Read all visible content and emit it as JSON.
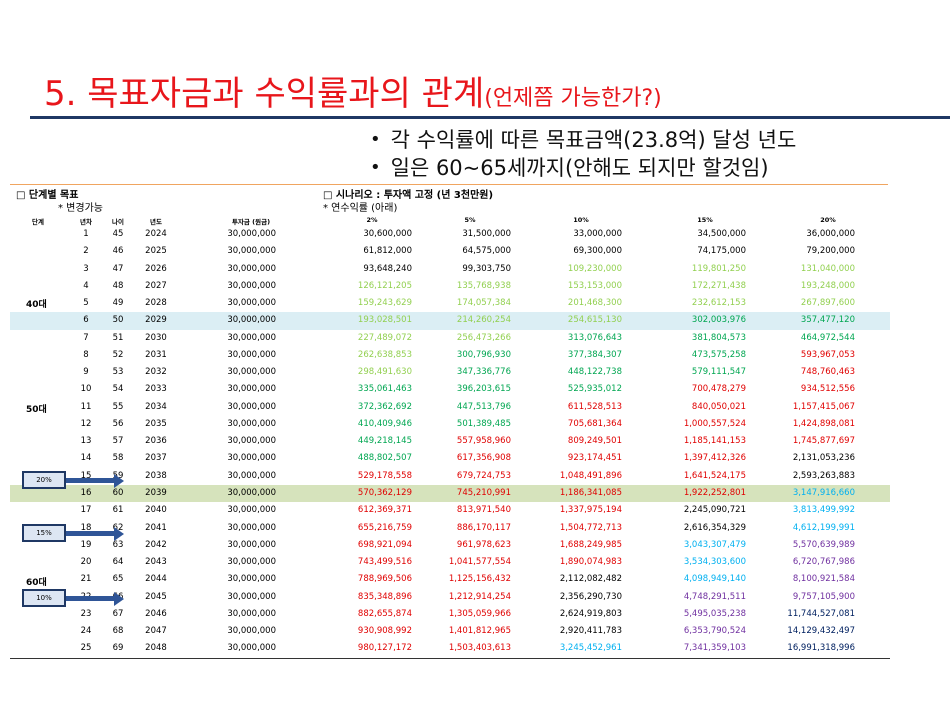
{
  "slide": {
    "title_main": "5. 목표자금과 수익률과의 관계",
    "title_sub": "(언제쯤 가능한가?)",
    "bullets": [
      "각 수익률에 따른 목표금액(23.8억) 달성 년도",
      "일은 60~65세까지(안해도 되지만 할것임)"
    ]
  },
  "table": {
    "left_header": "□ 단계별 목표",
    "left_note": "* 변경가능",
    "right_header": "□ 시나리오 : 투자액 고정 (년 3천만원)",
    "right_note": "* 연수익률 (아래)",
    "columns": {
      "stage": "단계",
      "year_no": "년차",
      "age": "나이",
      "year": "년도",
      "investment": "투자금 (원금)",
      "rates": [
        "2%",
        "5%",
        "10%",
        "15%",
        "20%"
      ]
    },
    "stage_labels": {
      "40s": "40대",
      "50s": "50대",
      "60s": "60대"
    },
    "callouts": [
      "20%",
      "15%",
      "10%"
    ],
    "rows": [
      {
        "n": "1",
        "age": "45",
        "year": "2024",
        "inv": "30,000,000",
        "v": [
          "30,600,000",
          "31,500,000",
          "33,000,000",
          "34,500,000",
          "36,000,000"
        ],
        "c": [
          "black",
          "black",
          "black",
          "black",
          "black"
        ]
      },
      {
        "n": "2",
        "age": "46",
        "year": "2025",
        "inv": "30,000,000",
        "v": [
          "61,812,000",
          "64,575,000",
          "69,300,000",
          "74,175,000",
          "79,200,000"
        ],
        "c": [
          "black",
          "black",
          "black",
          "black",
          "black"
        ]
      },
      {
        "n": "3",
        "age": "47",
        "year": "2026",
        "inv": "30,000,000",
        "v": [
          "93,648,240",
          "99,303,750",
          "109,230,000",
          "119,801,250",
          "131,040,000"
        ],
        "c": [
          "black",
          "black",
          "lime",
          "lime",
          "lime"
        ]
      },
      {
        "n": "4",
        "age": "48",
        "year": "2027",
        "inv": "30,000,000",
        "v": [
          "126,121,205",
          "135,768,938",
          "153,153,000",
          "172,271,438",
          "193,248,000"
        ],
        "c": [
          "lime",
          "lime",
          "lime",
          "lime",
          "lime"
        ]
      },
      {
        "n": "5",
        "age": "49",
        "year": "2028",
        "inv": "30,000,000",
        "v": [
          "159,243,629",
          "174,057,384",
          "201,468,300",
          "232,612,153",
          "267,897,600"
        ],
        "c": [
          "lime",
          "lime",
          "lime",
          "lime",
          "lime"
        ]
      },
      {
        "n": "6",
        "age": "50",
        "year": "2029",
        "inv": "30,000,000",
        "v": [
          "193,028,501",
          "214,260,254",
          "254,615,130",
          "302,003,976",
          "357,477,120"
        ],
        "c": [
          "lime",
          "lime",
          "lime",
          "green",
          "green"
        ],
        "hl": "blue"
      },
      {
        "n": "7",
        "age": "51",
        "year": "2030",
        "inv": "30,000,000",
        "v": [
          "227,489,072",
          "256,473,266",
          "313,076,643",
          "381,804,573",
          "464,972,544"
        ],
        "c": [
          "lime",
          "lime",
          "green",
          "green",
          "green"
        ]
      },
      {
        "n": "8",
        "age": "52",
        "year": "2031",
        "inv": "30,000,000",
        "v": [
          "262,638,853",
          "300,796,930",
          "377,384,307",
          "473,575,258",
          "593,967,053"
        ],
        "c": [
          "lime",
          "green",
          "green",
          "green",
          "red"
        ]
      },
      {
        "n": "9",
        "age": "53",
        "year": "2032",
        "inv": "30,000,000",
        "v": [
          "298,491,630",
          "347,336,776",
          "448,122,738",
          "579,111,547",
          "748,760,463"
        ],
        "c": [
          "lime",
          "green",
          "green",
          "green",
          "red"
        ]
      },
      {
        "n": "10",
        "age": "54",
        "year": "2033",
        "inv": "30,000,000",
        "v": [
          "335,061,463",
          "396,203,615",
          "525,935,012",
          "700,478,279",
          "934,512,556"
        ],
        "c": [
          "green",
          "green",
          "green",
          "red",
          "red"
        ]
      },
      {
        "n": "11",
        "age": "55",
        "year": "2034",
        "inv": "30,000,000",
        "v": [
          "372,362,692",
          "447,513,796",
          "611,528,513",
          "840,050,021",
          "1,157,415,067"
        ],
        "c": [
          "green",
          "green",
          "red",
          "red",
          "red"
        ]
      },
      {
        "n": "12",
        "age": "56",
        "year": "2035",
        "inv": "30,000,000",
        "v": [
          "410,409,946",
          "501,389,485",
          "705,681,364",
          "1,000,557,524",
          "1,424,898,081"
        ],
        "c": [
          "green",
          "green",
          "red",
          "red",
          "red"
        ]
      },
      {
        "n": "13",
        "age": "57",
        "year": "2036",
        "inv": "30,000,000",
        "v": [
          "449,218,145",
          "557,958,960",
          "809,249,501",
          "1,185,141,153",
          "1,745,877,697"
        ],
        "c": [
          "green",
          "red",
          "red",
          "red",
          "red"
        ]
      },
      {
        "n": "14",
        "age": "58",
        "year": "2037",
        "inv": "30,000,000",
        "v": [
          "488,802,507",
          "617,356,908",
          "923,174,451",
          "1,397,412,326",
          "2,131,053,236"
        ],
        "c": [
          "green",
          "red",
          "red",
          "red",
          "black"
        ]
      },
      {
        "n": "15",
        "age": "59",
        "year": "2038",
        "inv": "30,000,000",
        "v": [
          "529,178,558",
          "679,724,753",
          "1,048,491,896",
          "1,641,524,175",
          "2,593,263,883"
        ],
        "c": [
          "red",
          "red",
          "red",
          "red",
          "black"
        ]
      },
      {
        "n": "16",
        "age": "60",
        "year": "2039",
        "inv": "30,000,000",
        "v": [
          "570,362,129",
          "745,210,991",
          "1,186,341,085",
          "1,922,252,801",
          "3,147,916,660"
        ],
        "c": [
          "red",
          "red",
          "red",
          "red",
          "cyan"
        ],
        "hl": "green"
      },
      {
        "n": "17",
        "age": "61",
        "year": "2040",
        "inv": "30,000,000",
        "v": [
          "612,369,371",
          "813,971,540",
          "1,337,975,194",
          "2,245,090,721",
          "3,813,499,992"
        ],
        "c": [
          "red",
          "red",
          "red",
          "black",
          "cyan"
        ]
      },
      {
        "n": "18",
        "age": "62",
        "year": "2041",
        "inv": "30,000,000",
        "v": [
          "655,216,759",
          "886,170,117",
          "1,504,772,713",
          "2,616,354,329",
          "4,612,199,991"
        ],
        "c": [
          "red",
          "red",
          "red",
          "black",
          "cyan"
        ]
      },
      {
        "n": "19",
        "age": "63",
        "year": "2042",
        "inv": "30,000,000",
        "v": [
          "698,921,094",
          "961,978,623",
          "1,688,249,985",
          "3,043,307,479",
          "5,570,639,989"
        ],
        "c": [
          "red",
          "red",
          "red",
          "cyan",
          "purple"
        ]
      },
      {
        "n": "20",
        "age": "64",
        "year": "2043",
        "inv": "30,000,000",
        "v": [
          "743,499,516",
          "1,041,577,554",
          "1,890,074,983",
          "3,534,303,600",
          "6,720,767,986"
        ],
        "c": [
          "red",
          "red",
          "red",
          "cyan",
          "purple"
        ]
      },
      {
        "n": "21",
        "age": "65",
        "year": "2044",
        "inv": "30,000,000",
        "v": [
          "788,969,506",
          "1,125,156,432",
          "2,112,082,482",
          "4,098,949,140",
          "8,100,921,584"
        ],
        "c": [
          "red",
          "red",
          "black",
          "cyan",
          "purple"
        ]
      },
      {
        "n": "22",
        "age": "66",
        "year": "2045",
        "inv": "30,000,000",
        "v": [
          "835,348,896",
          "1,212,914,254",
          "2,356,290,730",
          "4,748,291,511",
          "9,757,105,900"
        ],
        "c": [
          "red",
          "red",
          "black",
          "purple",
          "purple"
        ]
      },
      {
        "n": "23",
        "age": "67",
        "year": "2046",
        "inv": "30,000,000",
        "v": [
          "882,655,874",
          "1,305,059,966",
          "2,624,919,803",
          "5,495,035,238",
          "11,744,527,081"
        ],
        "c": [
          "red",
          "red",
          "black",
          "purple",
          "navy"
        ]
      },
      {
        "n": "24",
        "age": "68",
        "year": "2047",
        "inv": "30,000,000",
        "v": [
          "930,908,992",
          "1,401,812,965",
          "2,920,411,783",
          "6,353,790,524",
          "14,129,432,497"
        ],
        "c": [
          "red",
          "red",
          "black",
          "purple",
          "navy"
        ]
      },
      {
        "n": "25",
        "age": "69",
        "year": "2048",
        "inv": "30,000,000",
        "v": [
          "980,127,172",
          "1,503,403,613",
          "3,245,452,961",
          "7,341,359,103",
          "16,991,318,996"
        ],
        "c": [
          "red",
          "red",
          "cyan",
          "purple",
          "navy"
        ]
      }
    ],
    "palette": {
      "black": "#000000",
      "lime": "#92d050",
      "green": "#00a651",
      "red": "#e00000",
      "cyan": "#00b0f0",
      "purple": "#7030a0",
      "navy": "#002060",
      "title": "#e8161b",
      "rule": "#1f3864"
    }
  }
}
